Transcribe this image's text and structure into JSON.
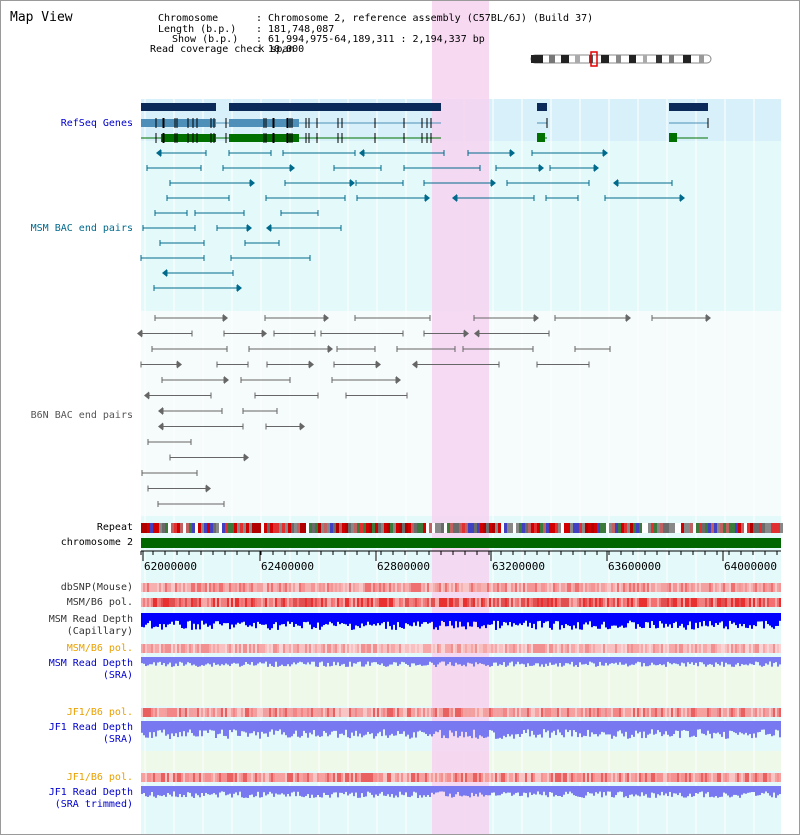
{
  "title": "Map View",
  "header": {
    "chromosome_key": "Chromosome",
    "chromosome_val": ": Chromosome 2, reference assembly (C57BL/6J) (Build 37)",
    "length_key": "Length (b.p.)",
    "length_val": ": 181,748,087",
    "show_key": "Show (b.p.)",
    "show_val": ": 61,994,975-64,189,311 : 2,194,337 bp",
    "coverage_key": "Read coverage check span",
    "coverage_val": ": 10,000"
  },
  "tracks": {
    "refseq": "RefSeq Genes",
    "msm_bac": "MSM BAC end pairs",
    "b6n_bac": "B6N BAC end pairs",
    "repeat": "Repeat",
    "chromosome": "chromosome 2",
    "dbsnp": "dbSNP(Mouse)",
    "msm_pol1": "MSM/B6 pol.",
    "msm_depth_cap1": "MSM Read Depth",
    "msm_depth_cap2": "(Capillary)",
    "msm_pol2": "MSM/B6 pol.",
    "msm_depth_sra1": "MSM Read Depth",
    "msm_depth_sra2": "(SRA)",
    "jf1_pol1": "JF1/B6 pol.",
    "jf1_depth_sra1": "JF1 Read Depth",
    "jf1_depth_sra2": "(SRA)",
    "jf1_pol2": "JF1/B6 pol.",
    "jf1_depth_trim1": "JF1 Read Depth",
    "jf1_depth_trim2": "(SRA trimmed)"
  },
  "axis_ticks": [
    "62000000",
    "62400000",
    "62800000",
    "63200000",
    "63600000",
    "64000000"
  ],
  "colors": {
    "label_blue": "#0000cc",
    "label_orange": "#e8a000",
    "refseq_dark": "#0b2a5a",
    "refseq_mid": "#4d8fb8",
    "refseq_green": "#007000",
    "msm_bac": "#006a8c",
    "b6n_bac": "#666666",
    "highlight_pink": "#f6d2f0",
    "bg_cyan": "#e4fafa",
    "chromosome_green": "#006600",
    "depth_dark_blue": "#0000ff",
    "depth_light_blue": "#7878f0"
  }
}
